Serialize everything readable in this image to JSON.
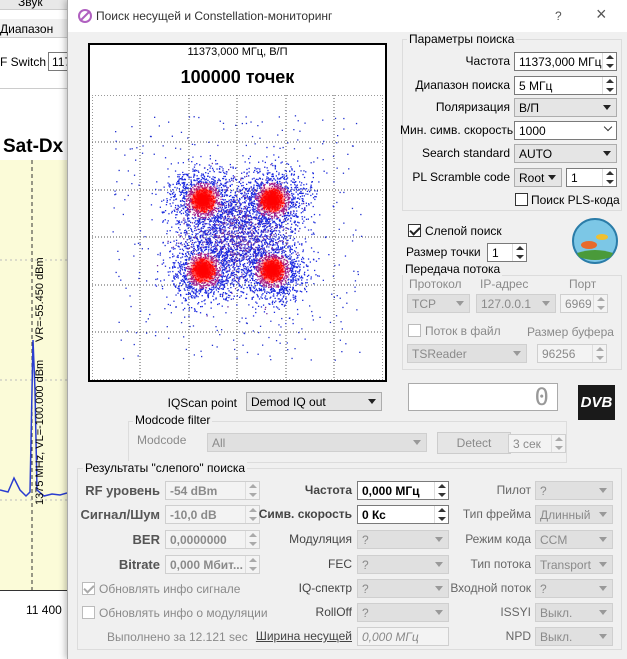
{
  "background_window": {
    "menu": "Звук",
    "tab": "Диапазон",
    "switch_label": "F Switch",
    "switch_value": "117",
    "title": "Sat-Dx",
    "marker_left": "1375 MHz, VL=-100.000 dBm",
    "marker_right": "VR=-55.450 dBm",
    "axis_label": "11 400"
  },
  "dialog": {
    "title": "Поиск несущей и Constellation-мониторинг",
    "help": "?",
    "close": "×"
  },
  "constellation": {
    "frequency": "11373,000 МГц, В/П",
    "points": "100000 точек"
  },
  "search_params": {
    "title": "Параметры поиска",
    "rows": [
      {
        "label": "Частота",
        "value": "11373,000 МГц"
      },
      {
        "label": "Диапазон поиска",
        "value": "5 МГц"
      },
      {
        "label": "Поляризация",
        "value": "В/П"
      },
      {
        "label": "Мин. симв. скорость",
        "value": "1000"
      },
      {
        "label": "Search standard",
        "value": "AUTO"
      }
    ],
    "pl_scramble": {
      "label": "PL Scramble code",
      "mode": "Root",
      "value": "1"
    },
    "pls_search": "Поиск PLS-кода"
  },
  "blind_search": "Слепой поиск",
  "point_size": {
    "label": "Размер точки",
    "value": "1"
  },
  "stream": {
    "title": "Передача потока",
    "protocol_label": "Протокол",
    "ip_label": "IP-адрес",
    "port_label": "Порт",
    "protocol": "TCP",
    "ip": "127.0.0.1",
    "port": "6969",
    "to_file": "Поток в файл",
    "buffer_label": "Размер буфера",
    "reader": "TSReader",
    "buffer": "96256"
  },
  "display": "0",
  "logo": "DVB",
  "iqscan": {
    "label": "IQScan point",
    "value": "Demod IQ out"
  },
  "modcode_filter": {
    "title": "Modcode filter",
    "label": "Modcode",
    "value": "All",
    "detect": "Detect",
    "interval": "3 сек"
  },
  "results": {
    "title": "Результаты \"слепого\" поиска",
    "signal": [
      {
        "label": "RF уровень",
        "value": "-54 dBm"
      },
      {
        "label": "Сигнал/Шум",
        "value": "-10,0 dB"
      },
      {
        "label": "BER",
        "value": "0,0000000"
      },
      {
        "label": "Bitrate",
        "value": "0,000 Мбит..."
      }
    ],
    "update_signal": "Обновлять инфо сигнале",
    "update_modulation": "Обновлять инфо о модуляции",
    "elapsed": "Выполнено за 12.121 sec",
    "carrier": [
      {
        "label": "Частота",
        "value": "0,000 МГц"
      },
      {
        "label": "Симв. скорость",
        "value": "0 Кс"
      },
      {
        "label": "Модуляция",
        "value": "?"
      },
      {
        "label": "FEC",
        "value": "?"
      },
      {
        "label": "IQ-спектр",
        "value": "?"
      },
      {
        "label": "RollOff",
        "value": "?"
      },
      {
        "label": "Ширина несущей",
        "value": "0,000 МГц"
      }
    ],
    "transport": [
      {
        "label": "Пилот",
        "value": "?"
      },
      {
        "label": "Тип фрейма",
        "value": "Длинный"
      },
      {
        "label": "Режим кода",
        "value": "CCM"
      },
      {
        "label": "Тип потока",
        "value": "Transport"
      },
      {
        "label": "Входной поток",
        "value": "?"
      },
      {
        "label": "ISSYI",
        "value": "Выкл."
      },
      {
        "label": "NPD",
        "value": "Выкл."
      }
    ]
  }
}
